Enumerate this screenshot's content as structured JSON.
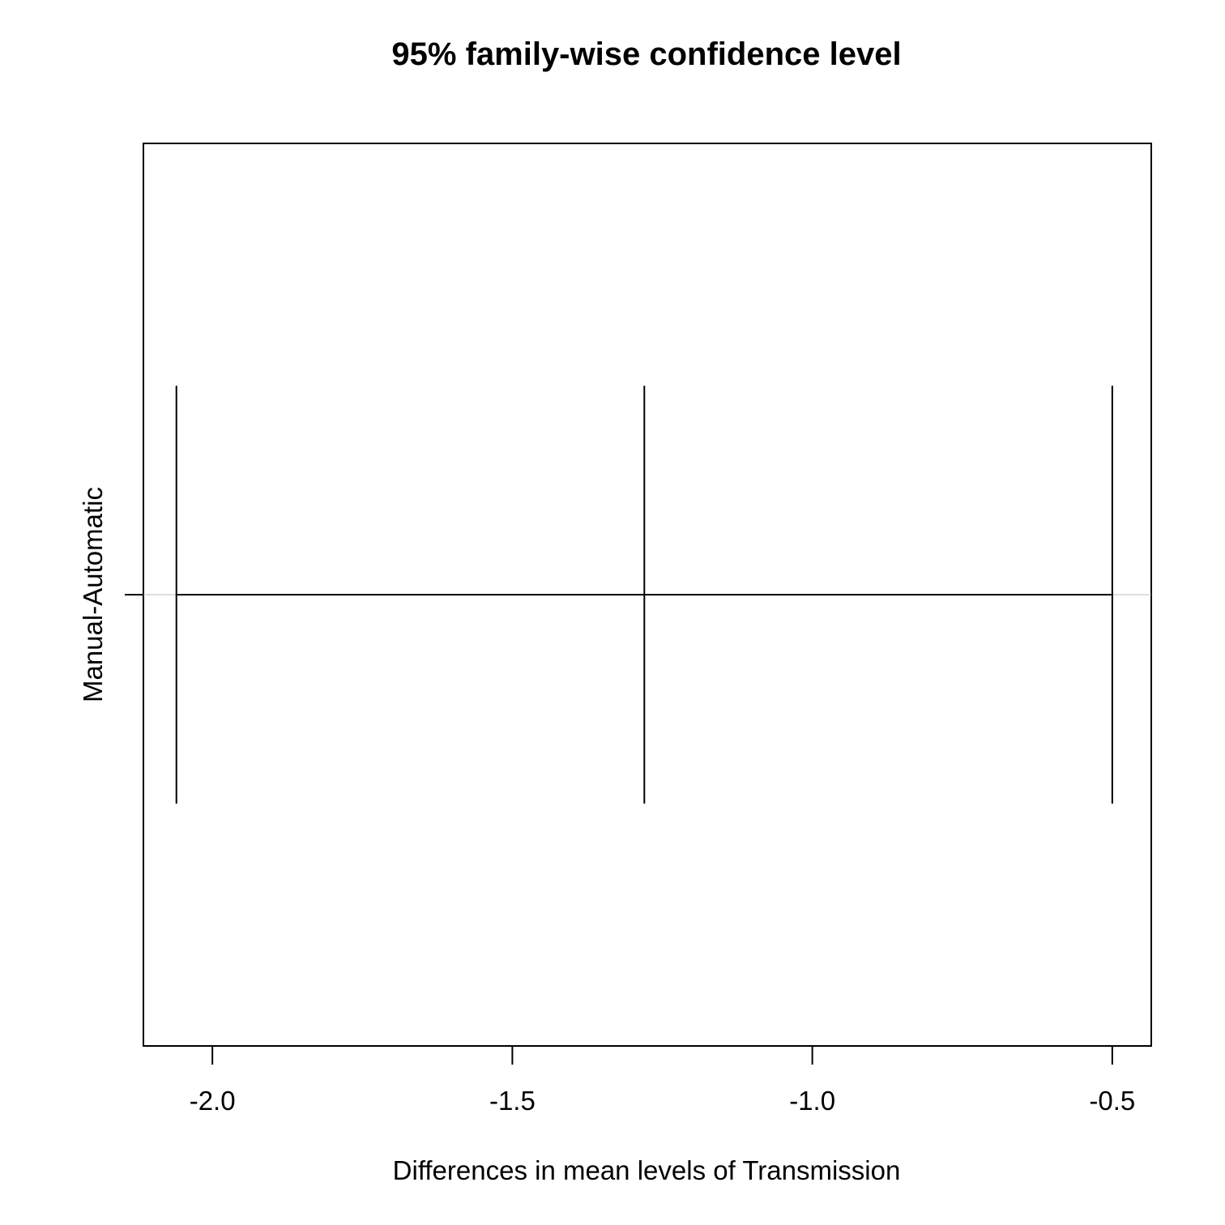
{
  "chart_data": {
    "type": "errorbar",
    "title": "95% family-wise confidence level",
    "xlabel": "Differences in mean levels of Transmission",
    "ylabel": "",
    "xlim": [
      -2.115,
      -0.435
    ],
    "xticks": [
      -2.0,
      -1.5,
      -1.0,
      -0.5
    ],
    "xtick_labels": [
      "-2.0",
      "-1.5",
      "-1.0",
      "-0.5"
    ],
    "zero_reference_line": true,
    "grid": false,
    "comparisons": [
      {
        "label": "Manual-Automatic",
        "lwr": -2.06,
        "diff": -1.28,
        "upr": -0.5
      }
    ],
    "colors": {
      "line": "#000000",
      "reference": "#bebebe",
      "background": "#ffffff"
    }
  }
}
